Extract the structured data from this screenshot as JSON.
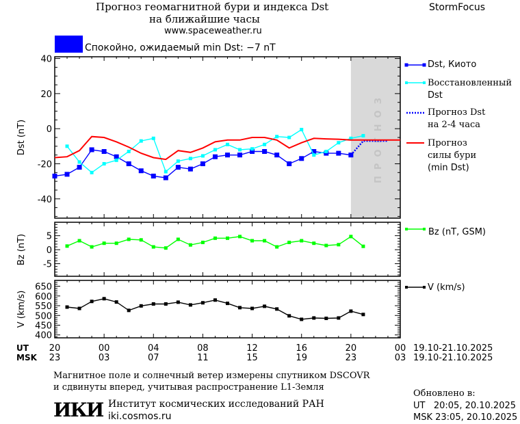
{
  "header": {
    "title_line1": "Прогноз геомагнитной бури и индекса Dst",
    "title_line2": "на ближайшие часы",
    "url": "www.spaceweather.ru",
    "brand": "StormFocus",
    "status_text": "Спокойно, ожидаемый min Dst: −7 nT",
    "status_color": "#0000ff"
  },
  "legend": {
    "dst_kyoto": "Dst, Киото",
    "restored_1": "Восстановленный",
    "restored_2": "Dst",
    "forecast_1": "Прогноз Dst",
    "forecast_2": "на 2-4 часа",
    "storm_1": "Прогноз",
    "storm_2": "силы бури",
    "storm_3": "(min Dst)",
    "bz": "Bz (nT, GSM)",
    "v": "V (km/s)"
  },
  "forecast_band_label": "ПРОГНОЗ",
  "time_axis": {
    "ut_label": "UT",
    "msk_label": "MSK",
    "ut_ticks": [
      "20",
      "00",
      "04",
      "08",
      "12",
      "16",
      "20",
      "00"
    ],
    "msk_ticks": [
      "23",
      "03",
      "07",
      "11",
      "15",
      "19",
      "23",
      "03"
    ],
    "ut_range": "19.10-21.10.2025",
    "msk_range": "19.10-21.10.2025"
  },
  "footer": {
    "note_1": "Магнитное поле и солнечный ветер измерены спутником DSCOVR",
    "note_2": "и сдвинуты вперед, учитывая распространение L1-Земля",
    "institute": "Институт космических исследований РАН",
    "institute_url": "iki.cosmos.ru",
    "logo_text": "ИКИ",
    "updated_label": "Обновлено в:",
    "updated_ut": "UT   20:05, 20.10.2025",
    "updated_msk": "MSK 23:05, 20.10.2025"
  },
  "chart_data": [
    {
      "type": "line",
      "ylabel": "Dst (nT)",
      "ylim": [
        -51,
        41
      ],
      "yticks": [
        40,
        20,
        0,
        -20,
        -40
      ],
      "x_unit": "hours from 20 UT 19.10.2025",
      "xlim": [
        0,
        28
      ],
      "forecast_region": [
        24,
        28
      ],
      "series": [
        {
          "name": "Dst, Киото",
          "color": "#0000ff",
          "marker": "square",
          "x": [
            0,
            1,
            2,
            3,
            4,
            5,
            6,
            7,
            8,
            9,
            10,
            11,
            12,
            13,
            14,
            15,
            16,
            17,
            18,
            19,
            20,
            21,
            22,
            23,
            24
          ],
          "values": [
            -27,
            -26,
            -22,
            -12,
            -13,
            -16,
            -20,
            -24,
            -27,
            -28,
            -22,
            -23,
            -20,
            -16,
            -15,
            -15,
            -13,
            -13,
            -15,
            -20,
            -17,
            -13,
            -14,
            -14,
            -15
          ]
        },
        {
          "name": "Восстановленный Dst",
          "color": "#00ffff",
          "marker": "square",
          "x": [
            1,
            2,
            3,
            4,
            5,
            6,
            7,
            8,
            9,
            10,
            11,
            12,
            13,
            14,
            15,
            16,
            17,
            18,
            19,
            20,
            21,
            22,
            23,
            24,
            25
          ],
          "values": [
            -10,
            -19,
            -25,
            -20,
            -18,
            -13,
            -7,
            -5.5,
            -24.5,
            -18.5,
            -17,
            -15.5,
            -12,
            -9,
            -12,
            -11.5,
            -9,
            -4.5,
            -5,
            -0.5,
            -15,
            -13,
            -8,
            -5.5,
            -4
          ]
        },
        {
          "name": "Прогноз Dst на 2-4 часа",
          "color": "#0000ff",
          "style": "dotted",
          "x": [
            24,
            25,
            27
          ],
          "values": [
            -15,
            -7,
            -7
          ]
        },
        {
          "name": "Прогноз силы бури (min Dst)",
          "color": "#ff0000",
          "x": [
            0,
            1,
            2,
            3,
            4,
            5,
            6,
            7,
            8,
            9,
            10,
            11,
            12,
            13,
            14,
            15,
            16,
            17,
            18,
            19,
            20,
            21,
            22,
            23,
            24,
            28
          ],
          "values": [
            -16.5,
            -16,
            -12.5,
            -4.5,
            -5,
            -7.5,
            -10.5,
            -14,
            -16.5,
            -17.5,
            -12.5,
            -13.5,
            -11,
            -7.5,
            -6.5,
            -6.5,
            -5,
            -5,
            -6.5,
            -11,
            -8,
            -5.5,
            -5.8,
            -6,
            -6.5,
            -6.5
          ]
        }
      ]
    },
    {
      "type": "line",
      "ylabel": "Bz (nT)",
      "ylim": [
        -9.5,
        9.8
      ],
      "yticks": [
        5,
        0,
        -5
      ],
      "series": [
        {
          "name": "Bz (nT, GSM)",
          "color": "#00ff00",
          "marker": "square",
          "x": [
            1,
            2,
            3,
            4,
            5,
            6,
            7,
            8,
            9,
            10,
            11,
            12,
            13,
            14,
            15,
            16,
            17,
            18,
            19,
            20,
            21,
            22,
            23,
            24,
            25
          ],
          "values": [
            1.3,
            3.2,
            1,
            2.3,
            2.3,
            3.7,
            3.5,
            1,
            0.6,
            3.7,
            1.7,
            2.6,
            4.1,
            4.1,
            4.7,
            3.2,
            3.2,
            1,
            2.6,
            3.2,
            2.3,
            1.5,
            1.8,
            4.7,
            1.2
          ]
        }
      ]
    },
    {
      "type": "line",
      "ylabel": "V (km/s)",
      "ylim": [
        385,
        680
      ],
      "yticks": [
        650,
        600,
        550,
        500,
        450,
        400
      ],
      "series": [
        {
          "name": "V (km/s)",
          "color": "#000000",
          "marker": "square",
          "x": [
            1,
            2,
            3,
            4,
            5,
            6,
            7,
            8,
            9,
            10,
            11,
            12,
            13,
            14,
            15,
            16,
            17,
            18,
            19,
            20,
            21,
            22,
            23,
            24,
            25
          ],
          "values": [
            543,
            536,
            572,
            586,
            569,
            526,
            549,
            559,
            559,
            568,
            554,
            565,
            579,
            562,
            540,
            536,
            547,
            533,
            498,
            480,
            487,
            485,
            487,
            522,
            505
          ]
        }
      ]
    }
  ]
}
